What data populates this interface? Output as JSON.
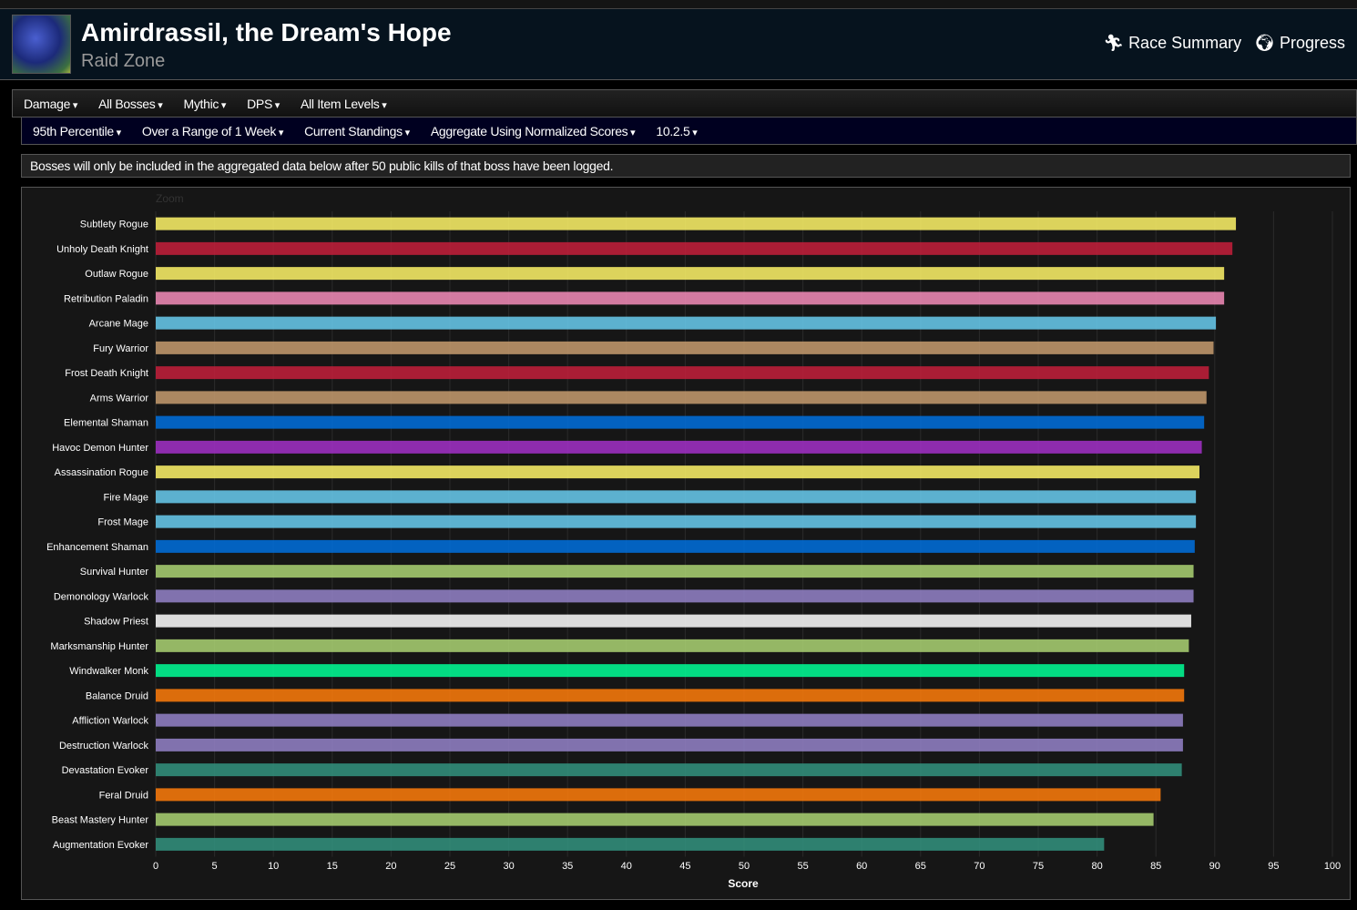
{
  "header": {
    "title": "Amirdrassil, the Dream's Hope",
    "subtitle": "Raid Zone",
    "race_summary": "Race Summary",
    "progress": "Progress"
  },
  "filters_row1": [
    "Damage",
    "All Bosses",
    "Mythic",
    "DPS",
    "All Item Levels"
  ],
  "filters_row2": [
    "95th Percentile",
    "Over a Range of 1 Week",
    "Current Standings",
    "Aggregate Using Normalized Scores",
    "10.2.5"
  ],
  "notice": "Bosses will only be included in the aggregated data below after 50 public kills of that boss have been logged.",
  "chart_data": {
    "type": "bar",
    "orientation": "horizontal",
    "xlabel": "Score",
    "xlim": [
      0,
      100
    ],
    "grid": true,
    "zoom_label": "Zoom",
    "xticks": [
      0,
      5,
      10,
      15,
      20,
      25,
      30,
      35,
      40,
      45,
      50,
      55,
      60,
      65,
      70,
      75,
      80,
      85,
      90,
      95,
      100
    ],
    "categories": [
      "Subtlety Rogue",
      "Unholy Death Knight",
      "Outlaw Rogue",
      "Retribution Paladin",
      "Arcane Mage",
      "Fury Warrior",
      "Frost Death Knight",
      "Arms Warrior",
      "Elemental Shaman",
      "Havoc Demon Hunter",
      "Assassination Rogue",
      "Fire Mage",
      "Frost Mage",
      "Enhancement Shaman",
      "Survival Hunter",
      "Demonology Warlock",
      "Shadow Priest",
      "Marksmanship Hunter",
      "Windwalker Monk",
      "Balance Druid",
      "Affliction Warlock",
      "Destruction Warlock",
      "Devastation Evoker",
      "Feral Druid",
      "Beast Mastery Hunter",
      "Augmentation Evoker"
    ],
    "values": [
      91.8,
      91.5,
      90.8,
      90.8,
      90.1,
      89.9,
      89.5,
      89.3,
      89.1,
      88.9,
      88.7,
      88.4,
      88.4,
      88.3,
      88.2,
      88.2,
      88.0,
      87.8,
      87.4,
      87.4,
      87.3,
      87.3,
      87.2,
      85.4,
      84.8,
      80.6
    ],
    "colors": [
      "#FFF569",
      "#C41F3B",
      "#FFF569",
      "#F58CBA",
      "#69CCF0",
      "#C79C6E",
      "#C41F3B",
      "#C79C6E",
      "#0070DE",
      "#A330C9",
      "#FFF569",
      "#69CCF0",
      "#69CCF0",
      "#0070DE",
      "#ABD473",
      "#9482C9",
      "#FFFFFF",
      "#ABD473",
      "#00FF96",
      "#FF7D0A",
      "#9482C9",
      "#9482C9",
      "#33937F",
      "#FF7D0A",
      "#ABD473",
      "#33937F"
    ]
  }
}
